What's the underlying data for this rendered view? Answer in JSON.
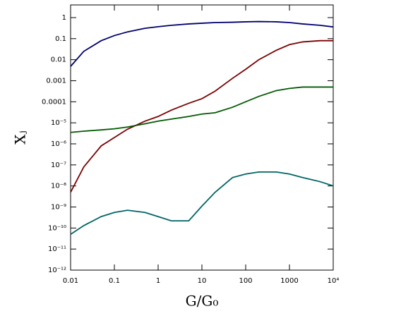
{
  "chart_data": {
    "type": "line",
    "xlabel": "G/G₀",
    "ylabel": "Xⱼ",
    "xscale": "log",
    "yscale": "log",
    "x": [
      0.01,
      0.02,
      0.05,
      0.1,
      0.2,
      0.5,
      1,
      2,
      5,
      10,
      20,
      50,
      100,
      200,
      500,
      1000,
      2000,
      5000,
      10000
    ],
    "series": [
      {
        "color": "#00006e",
        "values": [
          0.0048,
          0.025,
          0.08,
          0.14,
          0.21,
          0.31,
          0.37,
          0.43,
          0.5,
          0.54,
          0.58,
          0.6,
          0.63,
          0.65,
          0.63,
          0.58,
          0.5,
          0.43,
          0.36
        ]
      },
      {
        "color": "#7a0000",
        "values": [
          5e-09,
          8e-08,
          8e-07,
          2e-06,
          5e-06,
          1.2e-05,
          2e-05,
          4e-05,
          8.5e-05,
          0.00014,
          0.00032,
          0.0013,
          0.0035,
          0.01,
          0.028,
          0.052,
          0.07,
          0.08,
          0.08
        ]
      },
      {
        "color": "#005a00",
        "values": [
          3.5e-06,
          4e-06,
          4.6e-06,
          5.2e-06,
          6.3e-06,
          9e-06,
          1.2e-05,
          1.5e-05,
          2e-05,
          2.6e-05,
          3e-05,
          5.5e-05,
          0.0001,
          0.00018,
          0.00034,
          0.00043,
          0.0005,
          0.0005,
          0.0005
        ]
      },
      {
        "color": "#006464",
        "values": [
          5e-11,
          1.3e-10,
          3.5e-10,
          5.5e-10,
          7e-10,
          5.5e-10,
          3.5e-10,
          2.2e-10,
          2.2e-10,
          1.1e-09,
          5e-09,
          2.5e-08,
          3.7e-08,
          4.6e-08,
          4.6e-08,
          3.7e-08,
          2.5e-08,
          1.6e-08,
          1e-08
        ]
      }
    ],
    "xlim": [
      0.01,
      10000
    ],
    "ylim": [
      1e-12,
      4
    ],
    "xticks": [
      0.01,
      0.1,
      1,
      10,
      100,
      1000,
      {
        "value": 10000,
        "label": "10⁴"
      }
    ],
    "yticks": [
      {
        "value": 1e-12,
        "label": "10⁻¹²"
      },
      {
        "value": 1e-11,
        "label": "10⁻¹¹"
      },
      {
        "value": 1e-10,
        "label": "10⁻¹⁰"
      },
      {
        "value": 1e-09,
        "label": "10⁻⁹"
      },
      {
        "value": 1e-08,
        "label": "10⁻⁸"
      },
      {
        "value": 1e-07,
        "label": "10⁻⁷"
      },
      {
        "value": 1e-06,
        "label": "10⁻⁶"
      },
      {
        "value": 1e-05,
        "label": "10⁻⁵"
      },
      0.0001,
      0.001,
      0.01,
      0.1,
      1
    ]
  }
}
